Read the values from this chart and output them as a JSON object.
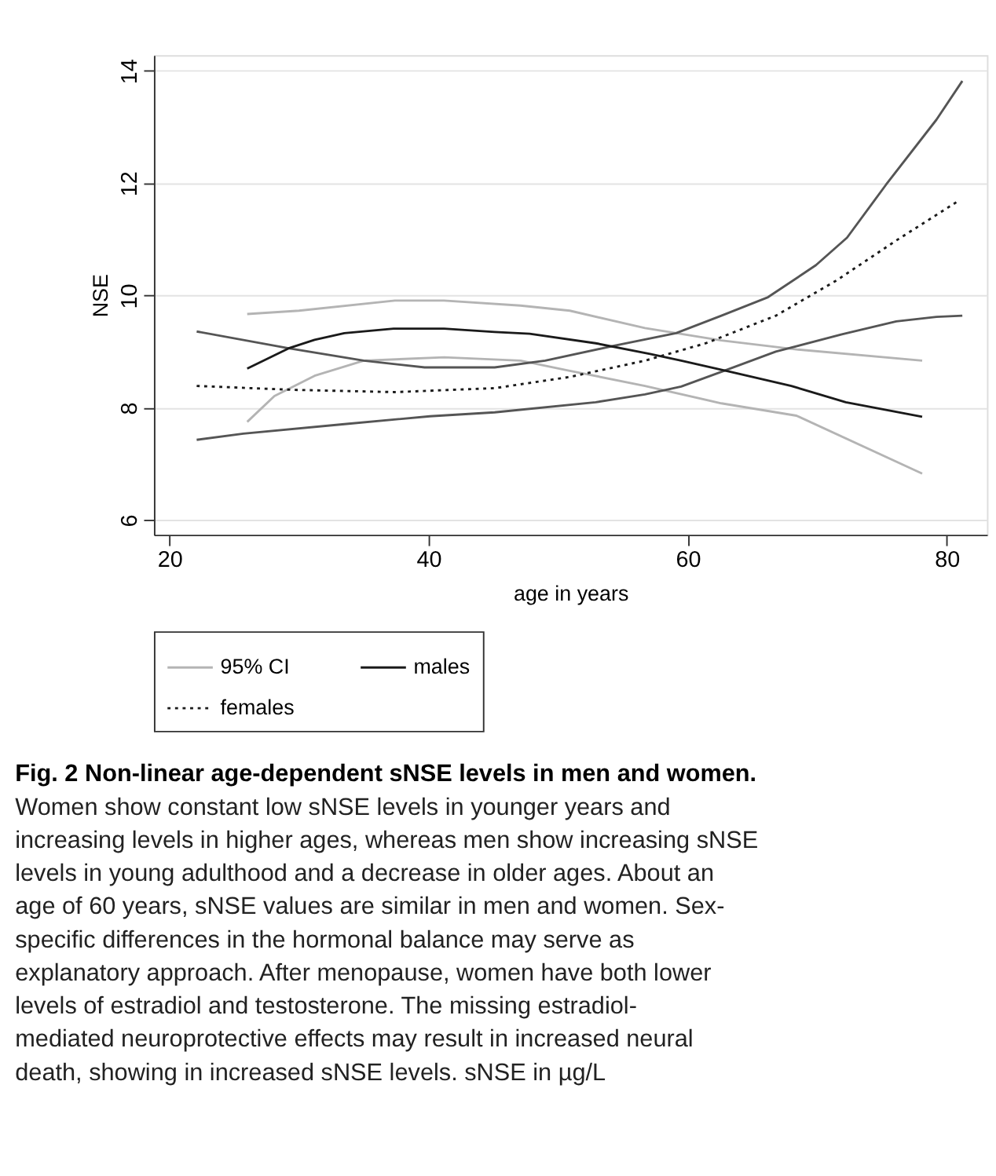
{
  "chart_data": {
    "type": "line",
    "title": "Fig. 2 Non-linear age-dependent sNSE levels in men and women.",
    "subtitle": "Women show constant low sNSE levels in younger years and increasing levels in higher ages, whereas men show increasing sNSE levels in young adulthood and a decrease in older ages. About an age of 60 years, sNSE values are similar in men and women. Sex-specific differences in the hormonal balance may serve as explanatory approach. After menopause, women have both lower levels of estradiol and testosterone. The missing estradiol-mediated neuroprotective effects may result in increased neural death, showing in increased sNSE levels. sNSE in µg/L",
    "xlabel": "age in years",
    "ylabel": "NSE",
    "xlim": [
      18.8,
      83.1
    ],
    "ylim": [
      5.74,
      14.28
    ],
    "xticks": [
      20,
      40,
      60,
      80
    ],
    "yticks": [
      6,
      8,
      10,
      12,
      14
    ],
    "grid": "y",
    "legend": "bottom",
    "marker": "none",
    "series": [
      {
        "name": "95% CI",
        "color": "#b4b4b4",
        "line_style": "solid",
        "x": [
          26.0,
          30.0,
          37.4,
          41.2,
          47.1,
          50.9,
          56.7,
          62.6,
          68.4,
          78.1
        ],
        "values": [
          9.67,
          9.73,
          9.91,
          9.91,
          9.82,
          9.73,
          9.42,
          9.2,
          9.04,
          8.84
        ]
      },
      {
        "color": "#b4b4b4",
        "line_style": "solid",
        "x": [
          26.0,
          28.1,
          31.2,
          35.0,
          41.2,
          47.1,
          50.9,
          56.7,
          62.6,
          68.4,
          78.1
        ],
        "values": [
          7.75,
          8.21,
          8.57,
          8.84,
          8.9,
          8.84,
          8.66,
          8.39,
          8.08,
          7.86,
          6.83
        ]
      },
      {
        "color": "#555555",
        "line_style": "solid",
        "x": [
          22.1,
          29.2,
          35.0,
          39.7,
          45.1,
          49.0,
          54.4,
          59.1,
          62.6,
          66.2,
          69.9,
          72.3,
          75.3,
          79.2,
          81.2
        ],
        "values": [
          9.36,
          9.06,
          8.84,
          8.72,
          8.72,
          8.84,
          9.11,
          9.33,
          9.64,
          9.97,
          10.54,
          11.03,
          11.97,
          13.13,
          13.82
        ]
      },
      {
        "color": "#555555",
        "line_style": "solid",
        "x": [
          22.1,
          25.7,
          33.5,
          40.1,
          45.1,
          52.9,
          56.7,
          59.5,
          62.6,
          66.8,
          71.9,
          76.1,
          79.2,
          81.2
        ],
        "values": [
          7.43,
          7.54,
          7.71,
          7.85,
          7.92,
          8.1,
          8.24,
          8.38,
          8.64,
          9.0,
          9.31,
          9.54,
          9.62,
          9.64
        ]
      },
      {
        "name": "males",
        "color": "#1a1a1a",
        "line_style": "solid",
        "x": [
          26.0,
          29.2,
          31.2,
          33.5,
          37.3,
          41.2,
          45.1,
          47.8,
          52.9,
          57.1,
          59.5,
          63.3,
          68.0,
          72.2,
          78.1
        ],
        "values": [
          8.7,
          9.06,
          9.21,
          9.33,
          9.41,
          9.41,
          9.35,
          9.32,
          9.15,
          8.96,
          8.84,
          8.64,
          8.39,
          8.1,
          7.84
        ]
      },
      {
        "name": "females",
        "color": "#1a1a1a",
        "line_style": "dotted",
        "x": [
          22.1,
          29.6,
          37.4,
          45.1,
          50.9,
          56.7,
          61.4,
          66.8,
          71.5,
          76.1,
          81.0
        ],
        "values": [
          8.39,
          8.32,
          8.28,
          8.35,
          8.55,
          8.84,
          9.15,
          9.64,
          10.27,
          10.98,
          11.7
        ]
      }
    ]
  }
}
